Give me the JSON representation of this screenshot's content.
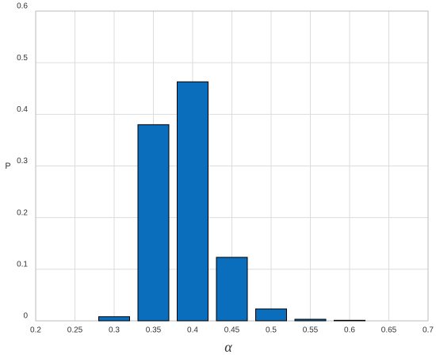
{
  "chart_data": {
    "type": "bar",
    "x": [
      0.3,
      0.35,
      0.4,
      0.45,
      0.5,
      0.55,
      0.6
    ],
    "values": [
      0.008,
      0.38,
      0.463,
      0.123,
      0.023,
      0.003,
      0.001
    ],
    "color": "#0a6ebd",
    "xlabel": "α",
    "ylabel": "P",
    "xlim": [
      0.2,
      0.7
    ],
    "xticks": [
      0.2,
      0.25,
      0.3,
      0.35,
      0.4,
      0.45,
      0.5,
      0.55,
      0.6,
      0.65,
      0.7
    ],
    "ylim": [
      0,
      0.6
    ],
    "yticks": [
      0,
      0.1,
      0.2,
      0.3,
      0.4,
      0.5,
      0.6
    ],
    "grid": true
  }
}
